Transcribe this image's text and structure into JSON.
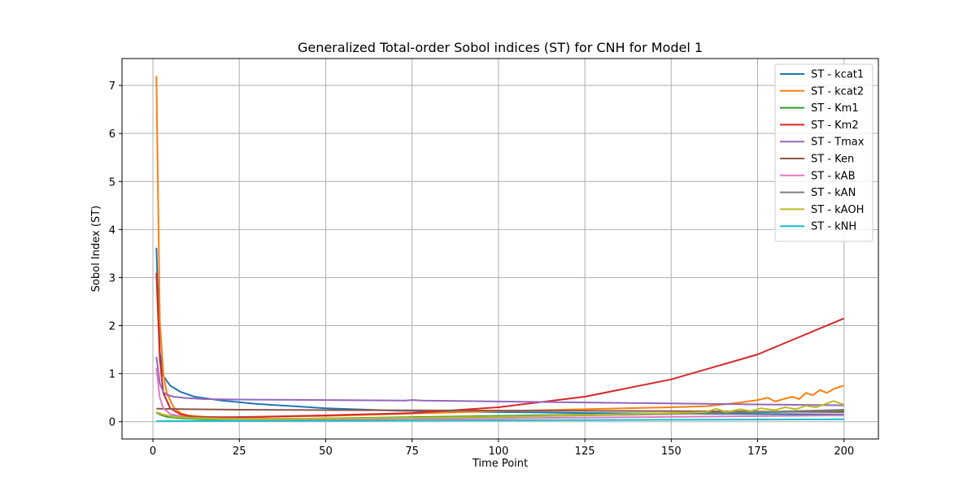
{
  "chart_data": {
    "type": "line",
    "title": "Generalized Total-order Sobol indices (ST) for CNH for Model 1",
    "xlabel": "Time Point",
    "ylabel": "Sobol Index (ST)",
    "xlim": [
      -8.95,
      209.95
    ],
    "ylim": [
      -0.36,
      7.56
    ],
    "x_ticks": [
      0,
      25,
      50,
      75,
      100,
      125,
      150,
      175,
      200
    ],
    "y_ticks": [
      0,
      1,
      2,
      3,
      4,
      5,
      6,
      7
    ],
    "grid": true,
    "legend_position": "upper right",
    "series": [
      {
        "name": "ST - kcat1",
        "color": "#1f77b4",
        "x": [
          1,
          2,
          3,
          5,
          8,
          12,
          20,
          30,
          50,
          70,
          85,
          100,
          125,
          150,
          175,
          200
        ],
        "y": [
          3.62,
          1.45,
          0.95,
          0.75,
          0.62,
          0.52,
          0.44,
          0.37,
          0.28,
          0.23,
          0.21,
          0.2,
          0.18,
          0.17,
          0.16,
          0.15
        ]
      },
      {
        "name": "ST - kcat2",
        "color": "#ff7f0e",
        "x": [
          1,
          2,
          3,
          4,
          6,
          8,
          10,
          15,
          25,
          50,
          75,
          100,
          125,
          150,
          160,
          165,
          170,
          175,
          178,
          180,
          183,
          185,
          187,
          189,
          191,
          193,
          195,
          197,
          199,
          200
        ],
        "y": [
          7.2,
          2.1,
          1.0,
          0.6,
          0.3,
          0.18,
          0.13,
          0.1,
          0.09,
          0.12,
          0.17,
          0.22,
          0.26,
          0.3,
          0.32,
          0.36,
          0.4,
          0.45,
          0.5,
          0.42,
          0.48,
          0.52,
          0.47,
          0.6,
          0.55,
          0.66,
          0.6,
          0.68,
          0.73,
          0.75
        ]
      },
      {
        "name": "ST - Km1",
        "color": "#2ca02c",
        "x": [
          1,
          2,
          4,
          8,
          15,
          30,
          50,
          100,
          150,
          200
        ],
        "y": [
          0.2,
          0.15,
          0.1,
          0.07,
          0.05,
          0.05,
          0.07,
          0.12,
          0.17,
          0.22
        ]
      },
      {
        "name": "ST - Km2",
        "color": "#d62728",
        "x": [
          1,
          2,
          3,
          5,
          8,
          12,
          20,
          30,
          50,
          75,
          100,
          125,
          150,
          175,
          200
        ],
        "y": [
          3.1,
          1.3,
          0.6,
          0.28,
          0.15,
          0.1,
          0.09,
          0.1,
          0.13,
          0.18,
          0.3,
          0.52,
          0.88,
          1.4,
          2.15
        ]
      },
      {
        "name": "ST - Tmax",
        "color": "#9467bd",
        "x": [
          1,
          2,
          3,
          4,
          6,
          10,
          15,
          25,
          50,
          73,
          75,
          78,
          100,
          125,
          150,
          175,
          200
        ],
        "y": [
          1.35,
          0.8,
          0.62,
          0.56,
          0.52,
          0.49,
          0.47,
          0.46,
          0.45,
          0.44,
          0.45,
          0.44,
          0.42,
          0.4,
          0.38,
          0.36,
          0.34
        ]
      },
      {
        "name": "ST - Ken",
        "color": "#8c564b",
        "x": [
          1,
          10,
          25,
          50,
          75,
          100,
          125,
          150,
          175,
          200
        ],
        "y": [
          0.27,
          0.26,
          0.25,
          0.24,
          0.235,
          0.23,
          0.225,
          0.22,
          0.21,
          0.2
        ]
      },
      {
        "name": "ST - kAB",
        "color": "#e377c2",
        "x": [
          1,
          2,
          3,
          5,
          8,
          12,
          20,
          30,
          50,
          100,
          150,
          200
        ],
        "y": [
          1.12,
          0.5,
          0.28,
          0.16,
          0.11,
          0.08,
          0.06,
          0.05,
          0.05,
          0.07,
          0.1,
          0.13
        ]
      },
      {
        "name": "ST - kAN",
        "color": "#7f7f7f",
        "x": [
          1,
          3,
          6,
          10,
          20,
          40,
          75,
          100,
          125,
          150,
          175,
          200
        ],
        "y": [
          0.18,
          0.14,
          0.11,
          0.09,
          0.07,
          0.06,
          0.08,
          0.1,
          0.13,
          0.16,
          0.2,
          0.25
        ]
      },
      {
        "name": "ST - kAOH",
        "color": "#bcbd22",
        "x": [
          1,
          3,
          6,
          10,
          20,
          40,
          75,
          100,
          125,
          150,
          160,
          163,
          166,
          170,
          173,
          176,
          180,
          183,
          186,
          189,
          192,
          195,
          197,
          200
        ],
        "y": [
          0.2,
          0.15,
          0.1,
          0.08,
          0.06,
          0.06,
          0.08,
          0.1,
          0.14,
          0.18,
          0.2,
          0.27,
          0.2,
          0.26,
          0.22,
          0.28,
          0.24,
          0.3,
          0.26,
          0.33,
          0.3,
          0.38,
          0.43,
          0.35
        ]
      },
      {
        "name": "ST - kNH",
        "color": "#17becf",
        "x": [
          1,
          25,
          50,
          75,
          100,
          125,
          150,
          175,
          200
        ],
        "y": [
          0.01,
          0.015,
          0.02,
          0.025,
          0.03,
          0.035,
          0.04,
          0.045,
          0.05
        ]
      }
    ]
  }
}
